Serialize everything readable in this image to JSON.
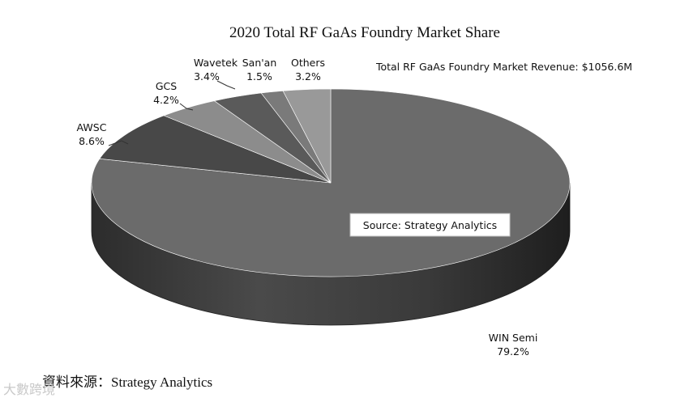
{
  "chart_data": {
    "type": "pie",
    "title": "2020 Total RF GaAs Foundry Market Share",
    "annotation": "Total RF GaAs Foundry Market Revenue: $1056.6M",
    "source_box": "Source: Strategy Analytics",
    "slices": [
      {
        "name": "WIN Semi",
        "value": 79.2,
        "label": "79.2%",
        "color": "#6b6b6b"
      },
      {
        "name": "AWSC",
        "value": 8.6,
        "label": "8.6%",
        "color": "#484848"
      },
      {
        "name": "GCS",
        "value": 4.2,
        "label": "4.2%",
        "color": "#8c8c8c"
      },
      {
        "name": "Wavetek",
        "value": 3.4,
        "label": "3.4%",
        "color": "#5a5a5a"
      },
      {
        "name": "San'an",
        "value": 1.5,
        "label": "1.5%",
        "color": "#7a7a7a"
      },
      {
        "name": "Others",
        "value": 3.2,
        "label": "3.2%",
        "color": "#999999"
      }
    ]
  },
  "footer": {
    "source_caption": "資料來源：Strategy Analytics",
    "watermark": "大數跨境"
  }
}
